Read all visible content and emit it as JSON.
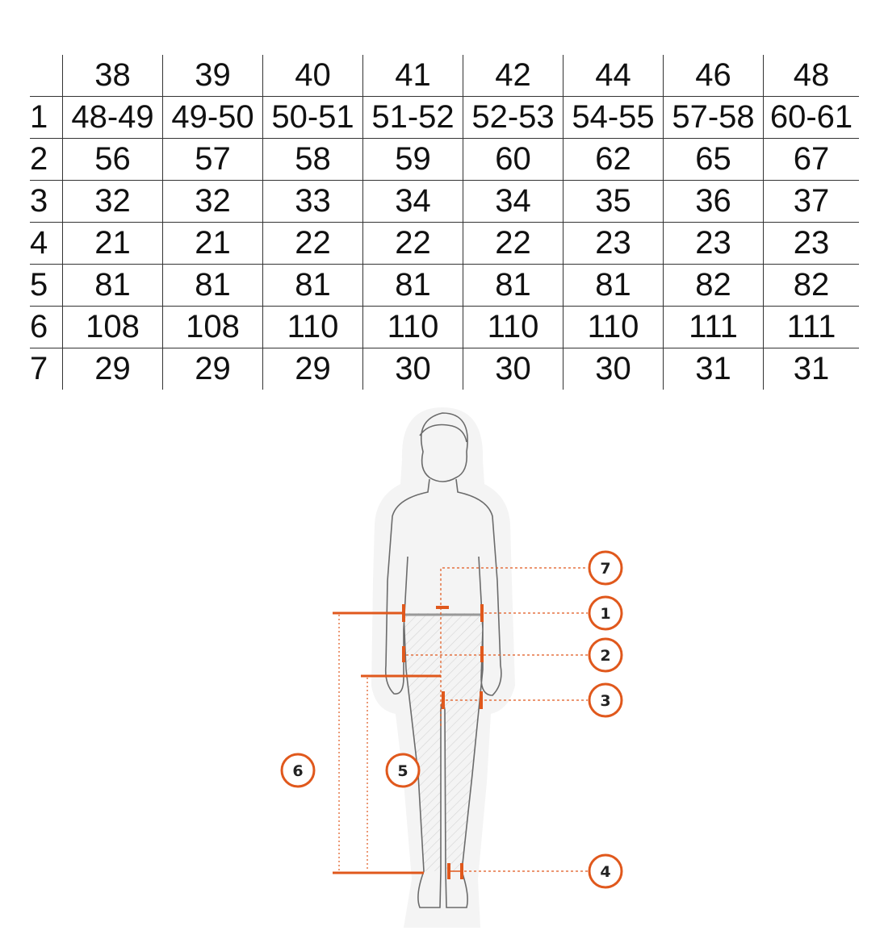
{
  "size_table": {
    "columns": [
      "38",
      "39",
      "40",
      "41",
      "42",
      "44",
      "46",
      "48"
    ],
    "rows": [
      {
        "label": "1",
        "values": [
          "48-49",
          "49-50",
          "50-51",
          "51-52",
          "52-53",
          "54-55",
          "57-58",
          "60-61"
        ]
      },
      {
        "label": "2",
        "values": [
          "56",
          "57",
          "58",
          "59",
          "60",
          "62",
          "65",
          "67"
        ]
      },
      {
        "label": "3",
        "values": [
          "32",
          "32",
          "33",
          "34",
          "34",
          "35",
          "36",
          "37"
        ]
      },
      {
        "label": "4",
        "values": [
          "21",
          "21",
          "22",
          "22",
          "22",
          "23",
          "23",
          "23"
        ]
      },
      {
        "label": "5",
        "values": [
          "81",
          "81",
          "81",
          "81",
          "81",
          "81",
          "82",
          "82"
        ]
      },
      {
        "label": "6",
        "values": [
          "108",
          "108",
          "110",
          "110",
          "110",
          "110",
          "111",
          "111"
        ]
      },
      {
        "label": "7",
        "values": [
          "29",
          "29",
          "29",
          "30",
          "30",
          "30",
          "31",
          "31"
        ]
      }
    ]
  },
  "figure": {
    "markers": {
      "m1": "1",
      "m2": "2",
      "m3": "3",
      "m4": "4",
      "m5": "5",
      "m6": "6",
      "m7": "7"
    },
    "accent_color": "#e0581c",
    "outline_color": "#6b6b6b"
  }
}
